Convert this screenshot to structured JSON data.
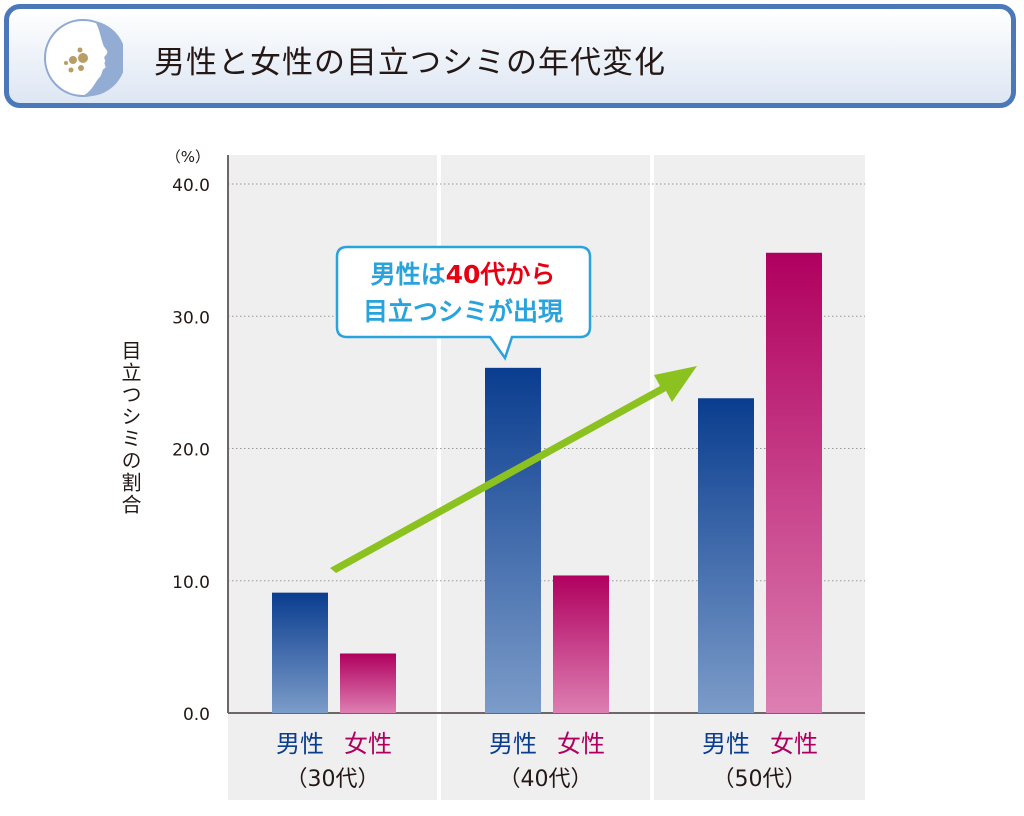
{
  "header": {
    "title": "男性と女性の目立つシミの年代変化",
    "icon": "face-with-spots-icon"
  },
  "chart_data": {
    "type": "bar",
    "title": "男性と女性の目立つシミの年代変化",
    "ylabel": "目立つシミの割合",
    "yunit": "（%）",
    "ylim": [
      0,
      40
    ],
    "yticks": [
      "0.0",
      "10.0",
      "20.0",
      "30.0",
      "40.0"
    ],
    "grid": true,
    "categories": [
      "（30代）",
      "（40代）",
      "（50代）"
    ],
    "series": [
      {
        "name": "男性",
        "color": "#0a3d8f",
        "values": [
          9.1,
          26.1,
          23.8
        ]
      },
      {
        "name": "女性",
        "color": "#b0005f",
        "values": [
          4.5,
          10.4,
          34.8
        ]
      }
    ],
    "annotation": {
      "line1_a": "男性は",
      "line1_b": "40代から",
      "line2": "目立つシミが出現",
      "highlight_color": "#e60012",
      "text_color": "#29a3dc",
      "arrow_color": "#8cc21f"
    }
  }
}
